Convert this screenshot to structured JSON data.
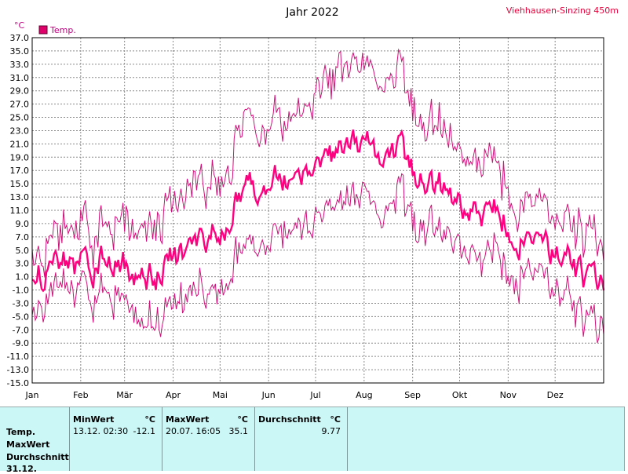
{
  "header": {
    "title": "Jahr 2022",
    "station": "Viehhausen-Sinzing 450m"
  },
  "chart_data": {
    "type": "line",
    "unit": "°C",
    "ylim": [
      -15,
      37
    ],
    "y_ticks": [
      "37.0",
      "35.0",
      "33.0",
      "31.0",
      "29.0",
      "27.0",
      "25.0",
      "23.0",
      "21.0",
      "19.0",
      "17.0",
      "15.0",
      "13.0",
      "11.0",
      "9.0",
      "7.0",
      "5.0",
      "3.0",
      "1.0",
      "-1.0",
      "-3.0",
      "-5.0",
      "-7.0",
      "-9.0",
      "-11.0",
      "-13.0",
      "-15.0"
    ],
    "x_ticks": [
      "Jan",
      "Feb",
      "Mär",
      "Apr",
      "Mai",
      "Jun",
      "Jul",
      "Aug",
      "Sep",
      "Okt",
      "Nov",
      "Dez"
    ],
    "grid": true,
    "legend": "top-left",
    "legend_label": "Temp.",
    "colors": {
      "mean": "#ff0080",
      "range": "#d0107a"
    },
    "series_summary": {
      "x_days": 365,
      "mean_monthly": [
        2,
        3.5,
        1.5,
        6.5,
        13.5,
        17.5,
        19.5,
        20,
        15,
        11.5,
        7.5,
        0.5
      ],
      "max_monthly": [
        6,
        9,
        10,
        15,
        23,
        27,
        31,
        31,
        24,
        19,
        13,
        6
      ],
      "min_monthly": [
        -2,
        -1,
        -5,
        -1,
        5,
        10,
        11,
        12,
        9,
        5,
        3,
        -6
      ]
    }
  },
  "stats": {
    "row_labels": [
      "Temp.",
      "MaxWert",
      "Durchschnitt",
      "31.12."
    ],
    "min": {
      "label": "MinWert",
      "unit": "°C",
      "date": "13.12.  02:30",
      "value": "-12.1"
    },
    "max": {
      "label": "MaxWert",
      "unit": "°C",
      "date": "20.07.  16:05",
      "value": "35.1"
    },
    "avg": {
      "label": "Durchschnitt",
      "unit": "°C",
      "value": "9.77"
    }
  }
}
